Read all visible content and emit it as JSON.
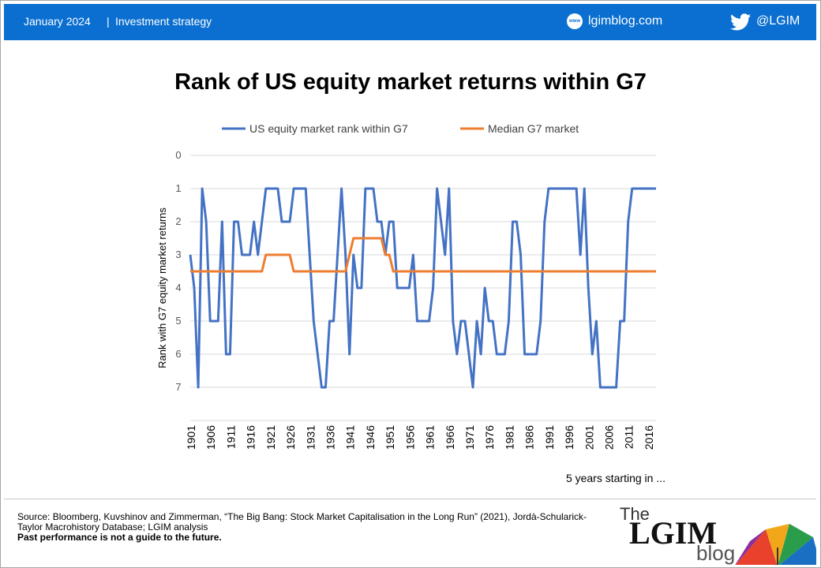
{
  "header": {
    "date": "January 2024",
    "separator": "|",
    "category": "Investment strategy",
    "website_icon": "www-icon",
    "website": "lgimblog.com",
    "social_icon": "twitter-icon",
    "handle": "@LGIM"
  },
  "title": "Rank of US equity market returns within G7",
  "footer": {
    "source": "Source: Bloomberg, Kuvshinov and Zimmerman, “The Big Bang: Stock Market Capitalisation in the Long Run” (2021), Jordà-Schularick-Taylor Macrohistory Database; LGIM analysis",
    "disclaimer": "Past performance is not a guide to the future.",
    "logo": {
      "the": "The",
      "name": "LGIM",
      "blog": "blog"
    }
  },
  "colors": {
    "header": "#0a6fd0",
    "us_series": "#4472c4",
    "median_series": "#ed7d31"
  },
  "chart_data": {
    "type": "line",
    "ylabel": "Rank with G7 equity market returns",
    "xlabel": "5 years starting in ...",
    "ylim": [
      0,
      8
    ],
    "y_inverted": true,
    "yticks": [
      0,
      1,
      2,
      3,
      4,
      5,
      6,
      7
    ],
    "grid": true,
    "legend_position": "top",
    "tick_labels": [
      "1901",
      "1906",
      "1911",
      "1916",
      "1921",
      "1926",
      "1931",
      "1936",
      "1941",
      "1946",
      "1951",
      "1956",
      "1961",
      "1966",
      "1971",
      "1976",
      "1981",
      "1986",
      "1991",
      "1996",
      "2001",
      "2006",
      "2011",
      "2016"
    ],
    "x": [
      1901,
      1902,
      1903,
      1904,
      1905,
      1906,
      1907,
      1908,
      1909,
      1910,
      1911,
      1912,
      1913,
      1914,
      1915,
      1916,
      1917,
      1918,
      1919,
      1920,
      1921,
      1922,
      1923,
      1924,
      1925,
      1926,
      1927,
      1928,
      1929,
      1930,
      1931,
      1932,
      1933,
      1934,
      1935,
      1936,
      1937,
      1938,
      1939,
      1940,
      1941,
      1942,
      1943,
      1944,
      1945,
      1946,
      1947,
      1948,
      1949,
      1950,
      1951,
      1952,
      1953,
      1954,
      1955,
      1956,
      1957,
      1958,
      1959,
      1960,
      1961,
      1962,
      1963,
      1964,
      1965,
      1966,
      1967,
      1968,
      1969,
      1970,
      1971,
      1972,
      1973,
      1974,
      1975,
      1976,
      1977,
      1978,
      1979,
      1980,
      1981,
      1982,
      1983,
      1984,
      1985,
      1986,
      1987,
      1988,
      1989,
      1990,
      1991,
      1992,
      1993,
      1994,
      1995,
      1996,
      1997,
      1998,
      1999,
      2000,
      2001,
      2002,
      2003,
      2004,
      2005,
      2006,
      2007,
      2008,
      2009,
      2010,
      2011,
      2012,
      2013,
      2014,
      2015,
      2016,
      2017,
      2018
    ],
    "series": [
      {
        "name": "US equity market rank within G7",
        "color": "#4472c4",
        "values": [
          3,
          4,
          7,
          1,
          2,
          5,
          5,
          5,
          2,
          6,
          6,
          2,
          2,
          3,
          3,
          3,
          2,
          3,
          2,
          1,
          1,
          1,
          1,
          2,
          2,
          2,
          1,
          1,
          1,
          1,
          3,
          5,
          6,
          7,
          7,
          5,
          5,
          3,
          1,
          3,
          6,
          3,
          4,
          4,
          1,
          1,
          1,
          2,
          2,
          3,
          2,
          2,
          4,
          4,
          4,
          4,
          3,
          5,
          5,
          5,
          5,
          4,
          1,
          2,
          3,
          1,
          5,
          6,
          5,
          5,
          6,
          7,
          5,
          6,
          4,
          5,
          5,
          6,
          6,
          6,
          5,
          2,
          2,
          3,
          6,
          6,
          6,
          6,
          5,
          2,
          1,
          1,
          1,
          1,
          1,
          1,
          1,
          1,
          3,
          1,
          4,
          6,
          5,
          7,
          7,
          7,
          7,
          7,
          5,
          5,
          2,
          1,
          1,
          1,
          1,
          1,
          1,
          1
        ]
      },
      {
        "name": "Median G7 market",
        "color": "#ed7d31",
        "values": [
          3.5,
          3.5,
          3.5,
          3.5,
          3.5,
          3.5,
          3.5,
          3.5,
          3.5,
          3.5,
          3.5,
          3.5,
          3.5,
          3.5,
          3.5,
          3.5,
          3.5,
          3.5,
          3.5,
          3,
          3,
          3,
          3,
          3,
          3,
          3,
          3.5,
          3.5,
          3.5,
          3.5,
          3.5,
          3.5,
          3.5,
          3.5,
          3.5,
          3.5,
          3.5,
          3.5,
          3.5,
          3.5,
          3,
          2.5,
          2.5,
          2.5,
          2.5,
          2.5,
          2.5,
          2.5,
          2.5,
          3,
          3,
          3.5,
          3.5,
          3.5,
          3.5,
          3.5,
          3.5,
          3.5,
          3.5,
          3.5,
          3.5,
          3.5,
          3.5,
          3.5,
          3.5,
          3.5,
          3.5,
          3.5,
          3.5,
          3.5,
          3.5,
          3.5,
          3.5,
          3.5,
          3.5,
          3.5,
          3.5,
          3.5,
          3.5,
          3.5,
          3.5,
          3.5,
          3.5,
          3.5,
          3.5,
          3.5,
          3.5,
          3.5,
          3.5,
          3.5,
          3.5,
          3.5,
          3.5,
          3.5,
          3.5,
          3.5,
          3.5,
          3.5,
          3.5,
          3.5,
          3.5,
          3.5,
          3.5,
          3.5,
          3.5,
          3.5,
          3.5,
          3.5,
          3.5,
          3.5,
          3.5,
          3.5,
          3.5,
          3.5,
          3.5,
          3.5,
          3.5,
          3.5
        ]
      }
    ]
  }
}
